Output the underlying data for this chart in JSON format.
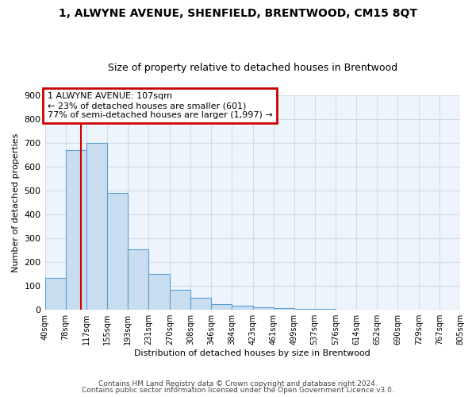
{
  "title": "1, ALWYNE AVENUE, SHENFIELD, BRENTWOOD, CM15 8QT",
  "subtitle": "Size of property relative to detached houses in Brentwood",
  "xlabel": "Distribution of detached houses by size in Brentwood",
  "ylabel": "Number of detached properties",
  "bin_edges": [
    40,
    78,
    117,
    155,
    193,
    231,
    270,
    308,
    346,
    384,
    423,
    461,
    499,
    537,
    576,
    614,
    652,
    690,
    729,
    767,
    805
  ],
  "bar_heights": [
    135,
    670,
    700,
    490,
    255,
    150,
    85,
    50,
    25,
    18,
    12,
    8,
    5,
    3,
    2,
    2,
    1,
    1,
    0,
    0
  ],
  "bar_color": "#c9ddf0",
  "bar_edge_color": "#5a9fd4",
  "red_line_x": 107,
  "annotation_title": "1 ALWYNE AVENUE: 107sqm",
  "annotation_line1": "← 23% of detached houses are smaller (601)",
  "annotation_line2": "77% of semi-detached houses are larger (1,997) →",
  "annotation_box_color": "#cc0000",
  "footer_line1": "Contains HM Land Registry data © Crown copyright and database right 2024.",
  "footer_line2": "Contains public sector information licensed under the Open Government Licence v3.0.",
  "ylim": [
    0,
    900
  ],
  "grid_color": "#d0dce8",
  "background_color": "#eef4fb"
}
